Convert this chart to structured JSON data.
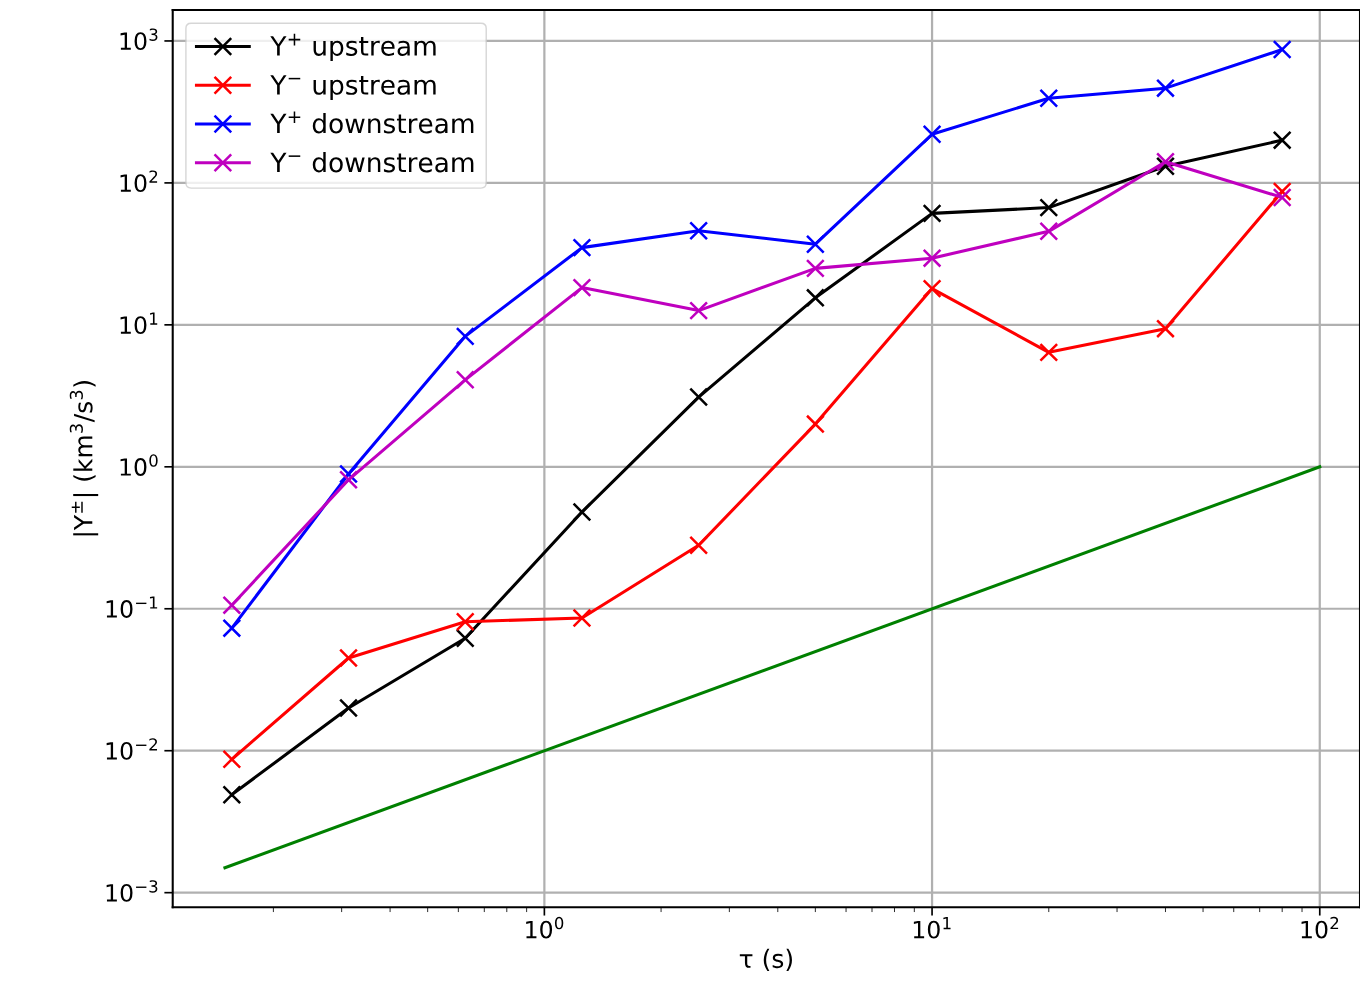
{
  "chart_data": {
    "type": "line",
    "xlabel": "τ (s)",
    "ylabel": "|Y$^{±}$| (km$^{3}$/s$^{3}$)",
    "log": "xy",
    "grid": true,
    "legend": "top left",
    "x": [
      0.15625,
      0.3125,
      0.625,
      1.25,
      2.5,
      5,
      10,
      20,
      40,
      80
    ],
    "xlim": [
      0.11,
      127
    ],
    "ylim": [
      0.00079,
      1650
    ],
    "xticks": [
      {
        "value": 1,
        "label": "10$^{0}$"
      },
      {
        "value": 10,
        "label": "10$^{1}$"
      },
      {
        "value": 100,
        "label": "10$^{2}$"
      }
    ],
    "yticks": [
      {
        "value": 0.001,
        "label": "10$^{−3}$"
      },
      {
        "value": 0.01,
        "label": "10$^{−2}$"
      },
      {
        "value": 0.1,
        "label": "10$^{−1}$"
      },
      {
        "value": 1,
        "label": "10$^{0}$"
      },
      {
        "value": 10,
        "label": "10$^{1}$"
      },
      {
        "value": 100,
        "label": "10$^{2}$"
      },
      {
        "value": 1000,
        "label": "10$^{3}$"
      }
    ],
    "series": [
      {
        "name": "Y$^{+}$ upstream",
        "color": "#000000",
        "marker": "cross",
        "values": [
          0.0049,
          0.02,
          0.062,
          0.48,
          3.1,
          15.5,
          61,
          67,
          131,
          200
        ]
      },
      {
        "name": "Y$^{−}$ upstream",
        "color": "#ff0000",
        "marker": "cross",
        "values": [
          0.0087,
          0.045,
          0.081,
          0.086,
          0.28,
          2.0,
          18,
          6.4,
          9.4,
          87
        ]
      },
      {
        "name": "Y$^{+}$ downstream",
        "color": "#0000ff",
        "marker": "cross",
        "values": [
          0.073,
          0.89,
          8.3,
          35,
          46,
          37,
          220,
          395,
          465,
          870
        ]
      },
      {
        "name": "Y$^{−}$ downstream",
        "color": "#bf00bf",
        "marker": "cross",
        "values": [
          0.106,
          0.81,
          4.1,
          18.3,
          12.6,
          25,
          29.5,
          45.6,
          141,
          79
        ]
      },
      {
        "color": "#008000",
        "marker": "none",
        "x": [
          0.15,
          100
        ],
        "values": [
          0.0015,
          1
        ]
      }
    ]
  }
}
